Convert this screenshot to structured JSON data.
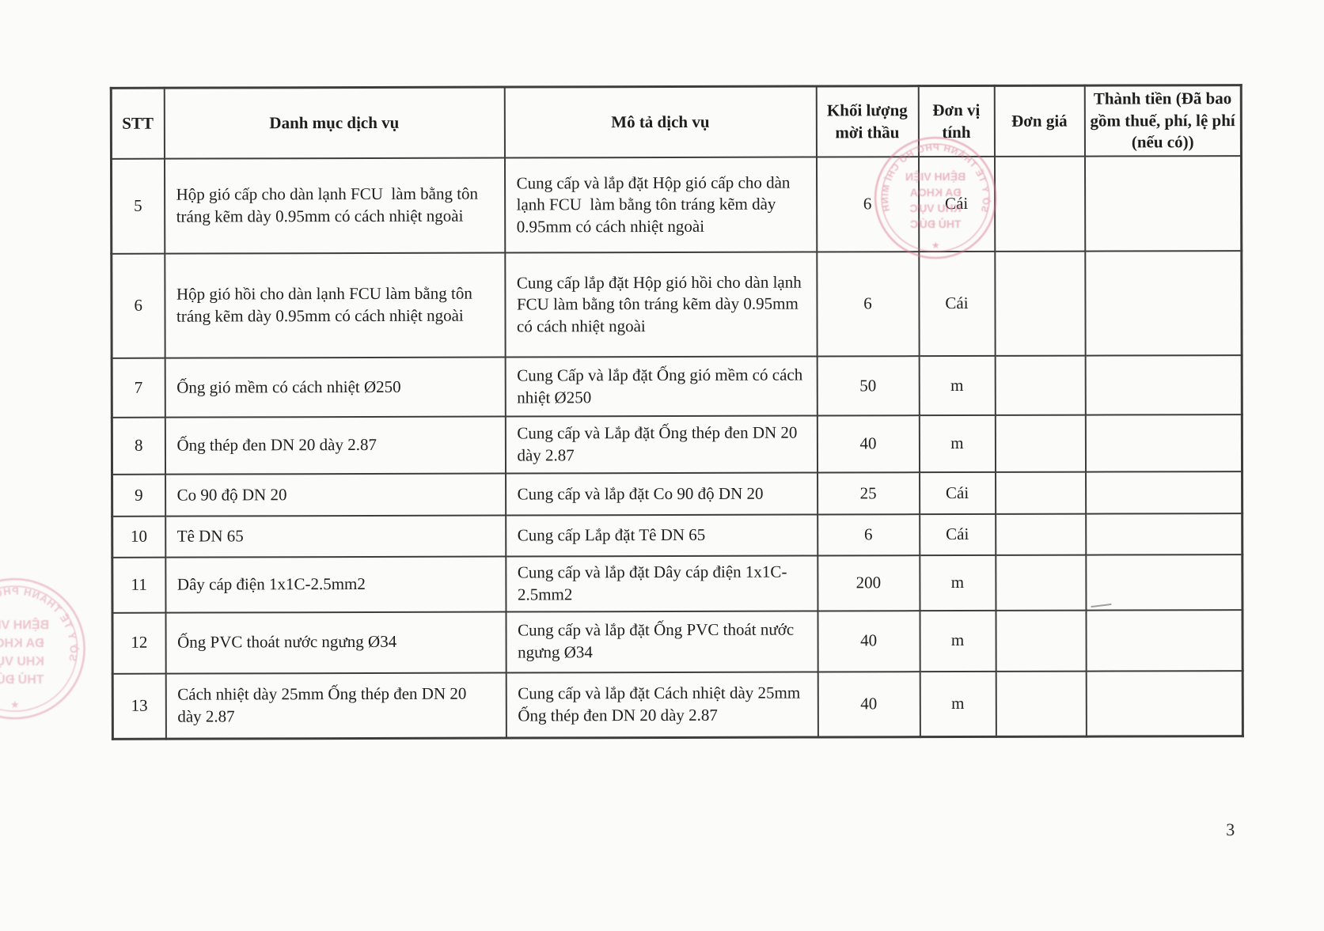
{
  "page": {
    "number": "3"
  },
  "table": {
    "headers": {
      "stt": "STT",
      "danh_muc": "Danh mục dịch vụ",
      "mo_ta": "Mô tả dịch vụ",
      "khoi_luong": "Khối lượng mời thầu",
      "don_vi": "Đơn vị tính",
      "don_gia": "Đơn giá",
      "thanh_tien": "Thành tiền (Đã bao gồm thuế, phí, lệ phí (nếu có))"
    },
    "rows": [
      {
        "stt": "5",
        "danh_muc": "Hộp gió cấp cho dàn lạnh FCU  làm bằng tôn tráng kẽm dày 0.95mm có cách nhiệt ngoài",
        "mo_ta": "Cung cấp và lắp đặt Hộp gió cấp cho dàn lạnh FCU  làm bằng tôn tráng kẽm dày 0.95mm có cách nhiệt ngoài",
        "khoi_luong": "6",
        "don_vi": "Cái",
        "don_gia": "",
        "thanh_tien": ""
      },
      {
        "stt": "6",
        "danh_muc": "Hộp gió hồi cho dàn lạnh FCU làm bằng tôn tráng kẽm dày 0.95mm có cách nhiệt ngoài",
        "mo_ta": "Cung cấp lắp đặt Hộp gió hồi cho dàn lạnh FCU làm bằng tôn tráng kẽm dày 0.95mm có cách nhiệt ngoài",
        "khoi_luong": "6",
        "don_vi": "Cái",
        "don_gia": "",
        "thanh_tien": ""
      },
      {
        "stt": "7",
        "danh_muc": "Ống gió mềm có cách nhiệt Ø250",
        "mo_ta": "Cung Cấp và lắp đặt Ống gió mềm có cách nhiệt Ø250",
        "khoi_luong": "50",
        "don_vi": "m",
        "don_gia": "",
        "thanh_tien": ""
      },
      {
        "stt": "8",
        "danh_muc": "Ống thép đen DN 20 dày 2.87",
        "mo_ta": "Cung cấp và Lắp đặt Ống thép đen DN 20 dày 2.87",
        "khoi_luong": "40",
        "don_vi": "m",
        "don_gia": "",
        "thanh_tien": ""
      },
      {
        "stt": "9",
        "danh_muc": "Co 90 độ DN 20",
        "mo_ta": "Cung cấp và lắp đặt Co 90 độ DN 20",
        "khoi_luong": "25",
        "don_vi": "Cái",
        "don_gia": "",
        "thanh_tien": ""
      },
      {
        "stt": "10",
        "danh_muc": "Tê DN 65",
        "mo_ta": "Cung cấp Lắp đặt Tê DN 65",
        "khoi_luong": "6",
        "don_vi": "Cái",
        "don_gia": "",
        "thanh_tien": ""
      },
      {
        "stt": "11",
        "danh_muc": "Dây cáp điện 1x1C-2.5mm2",
        "mo_ta": "Cung cấp và lắp đặt Dây cáp điện 1x1C-2.5mm2",
        "khoi_luong": "200",
        "don_vi": "m",
        "don_gia": "",
        "thanh_tien": ""
      },
      {
        "stt": "12",
        "danh_muc": "Ống PVC thoát nước ngưng Ø34",
        "mo_ta": "Cung cấp và lắp đặt Ống PVC thoát nước ngưng Ø34",
        "khoi_luong": "40",
        "don_vi": "m",
        "don_gia": "",
        "thanh_tien": ""
      },
      {
        "stt": "13",
        "danh_muc": "Cách nhiệt dày 25mm Ống thép đen DN 20 dày 2.87",
        "mo_ta": "Cung cấp và lắp đặt Cách nhiệt dày 25mm Ống thép đen DN 20 dày 2.87",
        "khoi_luong": "40",
        "don_vi": "m",
        "don_gia": "",
        "thanh_tien": ""
      }
    ]
  },
  "stamps": {
    "color": "#d9758c",
    "ring_text": "SỞ Y TẾ THÀNH PHỐ HỒ CHÍ MINH",
    "star": "★",
    "lines": [
      "BỆNH VIỆN",
      "ĐA KHOA",
      "KHU VỰC",
      "THỦ ĐỨC"
    ]
  }
}
